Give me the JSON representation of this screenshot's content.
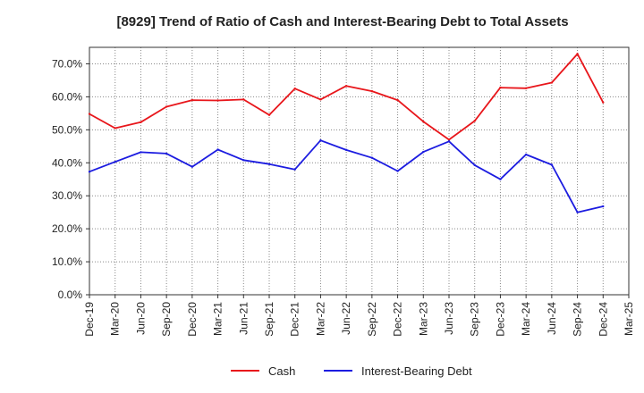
{
  "chart_data": {
    "type": "line",
    "title": "[8929]  Trend of Ratio of Cash and Interest-Bearing Debt to Total Assets",
    "xlabel": "",
    "ylabel": "",
    "categories": [
      "Dec-19",
      "Mar-20",
      "Jun-20",
      "Sep-20",
      "Dec-20",
      "Mar-21",
      "Jun-21",
      "Sep-21",
      "Dec-21",
      "Mar-22",
      "Jun-22",
      "Sep-22",
      "Dec-22",
      "Mar-23",
      "Jun-23",
      "Sep-23",
      "Dec-23",
      "Mar-24",
      "Jun-24",
      "Sep-24",
      "Dec-24",
      "Mar-25"
    ],
    "ylim": [
      0,
      75
    ],
    "yticks": [
      0,
      10,
      20,
      30,
      40,
      50,
      60,
      70
    ],
    "ytick_labels": [
      "0.0%",
      "10.0%",
      "20.0%",
      "30.0%",
      "40.0%",
      "50.0%",
      "60.0%",
      "70.0%"
    ],
    "grid": true,
    "legend_position": "bottom",
    "series": [
      {
        "name": "Cash",
        "color": "#e8161b",
        "values": [
          54.8,
          50.5,
          52.3,
          57.0,
          59.0,
          58.9,
          59.2,
          54.5,
          62.5,
          59.2,
          63.3,
          61.7,
          59.0,
          52.5,
          47.0,
          52.7,
          62.8,
          62.6,
          64.3,
          73.0,
          58.3,
          null
        ]
      },
      {
        "name": "Interest-Bearing Debt",
        "color": "#1c1ce0",
        "values": [
          37.3,
          40.3,
          43.2,
          42.8,
          38.8,
          44.0,
          40.8,
          39.6,
          38.0,
          46.8,
          43.9,
          41.5,
          37.5,
          43.3,
          46.5,
          39.3,
          35.0,
          42.5,
          39.4,
          25.0,
          26.8,
          null
        ]
      }
    ]
  }
}
